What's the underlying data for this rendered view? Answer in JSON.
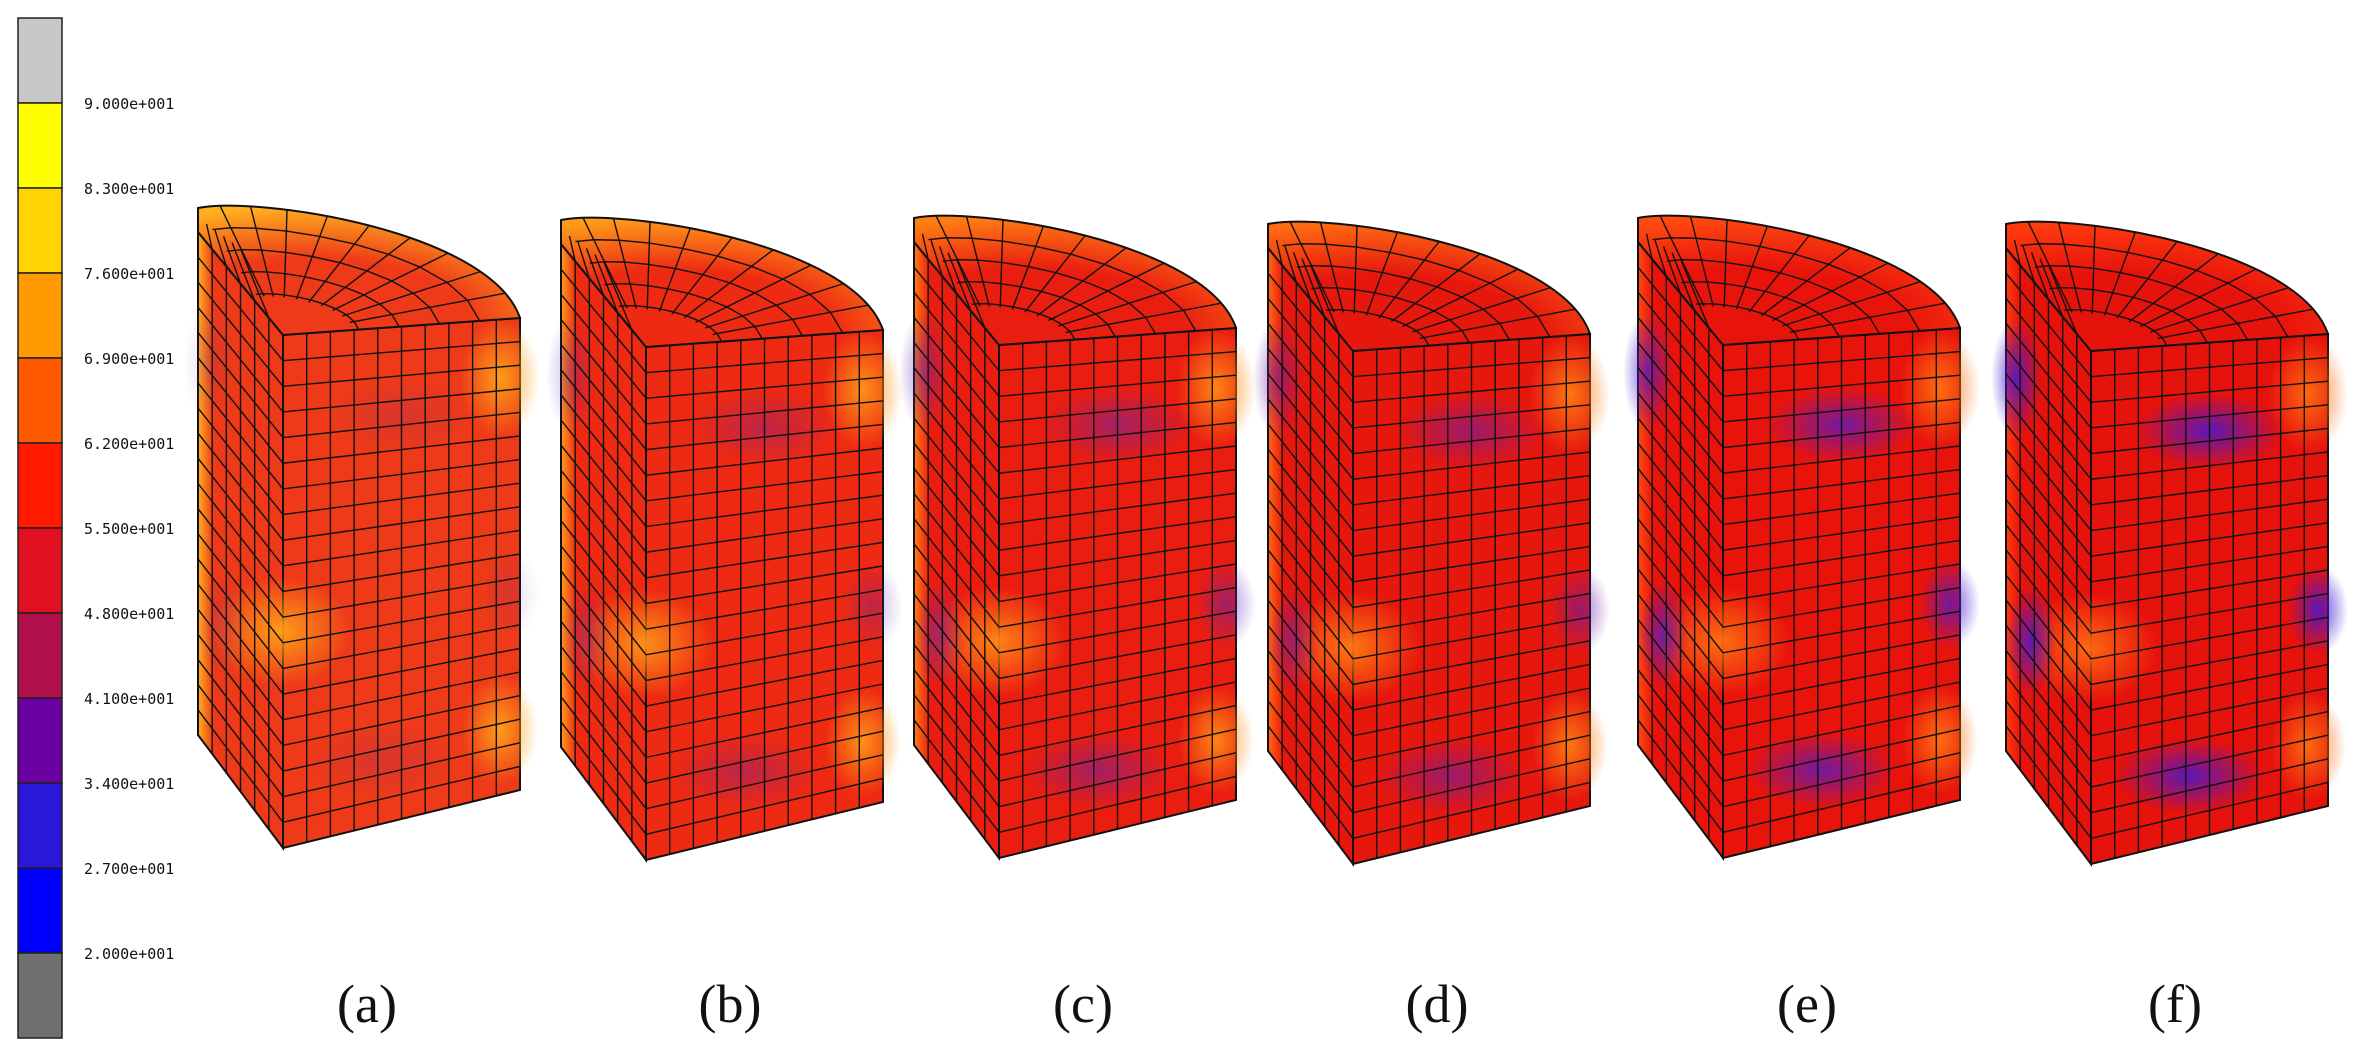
{
  "colorbar": {
    "colors": [
      "#c8c8c8",
      "#ffff00",
      "#ffd400",
      "#ff9a00",
      "#ff5a00",
      "#ff1a00",
      "#e01020",
      "#b0104a",
      "#6a00a0",
      "#2a18d8",
      "#0000ff",
      "#707070"
    ],
    "ticks": [
      "9.000e+001",
      "8.300e+001",
      "7.600e+001",
      "6.900e+001",
      "6.200e+001",
      "5.500e+001",
      "4.800e+001",
      "4.100e+001",
      "3.400e+001",
      "2.700e+001",
      "2.000e+001"
    ]
  },
  "panels": [
    {
      "label": "(a)",
      "base": "#ee3a18",
      "rim": "#ffb020",
      "hot": "#ffa21a",
      "cold": "#5a1aa8",
      "cold_strength": 0.15
    },
    {
      "label": "(b)",
      "base": "#ee2a12",
      "rim": "#ff9a1a",
      "hot": "#ff9618",
      "cold": "#4a18c0",
      "cold_strength": 0.3
    },
    {
      "label": "(c)",
      "base": "#ea1e10",
      "rim": "#ff7e14",
      "hot": "#ff8a16",
      "cold": "#5a20b8",
      "cold_strength": 0.5
    },
    {
      "label": "(d)",
      "base": "#e6180e",
      "rim": "#ff6a12",
      "hot": "#ff7c14",
      "cold": "#6a1aa8",
      "cold_strength": 0.6
    },
    {
      "label": "(e)",
      "base": "#e8140c",
      "rim": "#ff4a10",
      "hot": "#ff7212",
      "cold": "#4a1ad0",
      "cold_strength": 0.75
    },
    {
      "label": "(f)",
      "base": "#e6120c",
      "rim": "#ff3a0e",
      "hot": "#ff6c12",
      "cold": "#4418d4",
      "cold_strength": 0.85
    }
  ]
}
